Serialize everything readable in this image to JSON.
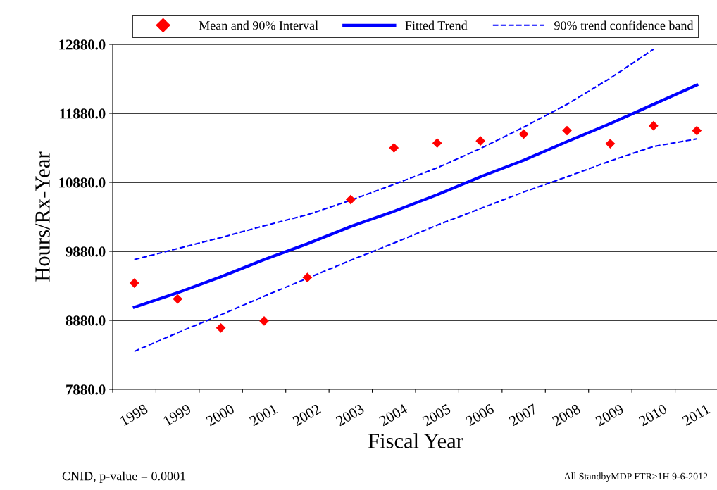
{
  "chart_data": {
    "type": "line",
    "xlabel": "Fiscal Year",
    "ylabel": "Hours/Rx-Year",
    "categories": [
      "1998",
      "1999",
      "2000",
      "2001",
      "2002",
      "2003",
      "2004",
      "2005",
      "2006",
      "2007",
      "2008",
      "2009",
      "2010",
      "2011"
    ],
    "series": [
      {
        "name": "Mean and 90% Interval",
        "type": "scatter",
        "marker": "diamond",
        "color": "#ff0000",
        "values": [
          9420,
          9190,
          8770,
          8870,
          9500,
          10630,
          11380,
          11450,
          11480,
          11580,
          11630,
          11440,
          11700,
          11630
        ]
      },
      {
        "name": "Fitted Trend",
        "line_style": "solid",
        "color": "#0000ff",
        "values": [
          9070,
          9280,
          9510,
          9760,
          9990,
          10240,
          10460,
          10700,
          10960,
          11200,
          11470,
          11730,
          12010,
          12290
        ]
      },
      {
        "name": "90% trend confidence band",
        "line_style": "dashed",
        "color": "#0000ff",
        "values": [
          9760,
          9920,
          10080,
          10250,
          10410,
          10620,
          10850,
          11090,
          11370,
          11680,
          12010,
          12390,
          12810,
          null
        ]
      },
      {
        "line_style": "dashed",
        "color": "#0000ff",
        "values": [
          8430,
          8700,
          8960,
          9230,
          9490,
          9750,
          10000,
          10260,
          10500,
          10740,
          10960,
          11190,
          11400,
          11510
        ]
      }
    ],
    "ylim": [
      7880,
      12880
    ],
    "yticks": [
      {
        "value": 7880,
        "label": "7880.0"
      },
      {
        "value": 8880,
        "label": "8880.0"
      },
      {
        "value": 9880,
        "label": "9880.0"
      },
      {
        "value": 10880,
        "label": "10880.0"
      },
      {
        "value": 11880,
        "label": "11880.0"
      },
      {
        "value": 12880,
        "label": "12880.0"
      }
    ],
    "grid": "y",
    "legend": "top",
    "annotations": [
      "CNID, p-value = 0.0001",
      "All StandbyMDP FTR>1H 9-6-2012"
    ]
  }
}
